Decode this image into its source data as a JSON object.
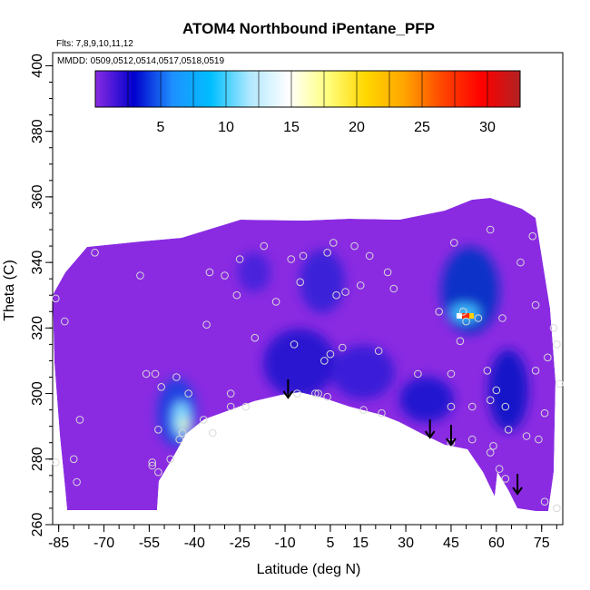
{
  "chart_data": {
    "type": "heatmap",
    "title": "ATOM4 Northbound iPentane_PFP",
    "subtitle_flights": "Flts: 7,8,9,10,11,12",
    "subtitle_dates": "MMDD: 0509,0512,0514,0517,0518,0519",
    "xlabel": "Latitude (deg N)",
    "ylabel": "Theta (C)",
    "xlim": [
      -87,
      82
    ],
    "ylim": [
      260,
      404
    ],
    "x_ticks": [
      -85,
      -70,
      -55,
      -40,
      -25,
      -10,
      5,
      15,
      30,
      45,
      60,
      75
    ],
    "y_ticks": [
      260,
      280,
      300,
      320,
      340,
      360,
      380,
      400
    ],
    "colorbar": {
      "range": [
        0,
        32.5
      ],
      "ticks": [
        5,
        10,
        15,
        20,
        25,
        30
      ],
      "colors": [
        "#8a2be2",
        "#0000cd",
        "#1e90ff",
        "#00bfff",
        "#b0e8ff",
        "#ffffff",
        "#ffff80",
        "#ffd700",
        "#ffa500",
        "#ff4500",
        "#ff0000",
        "#b22222"
      ]
    },
    "arrows": [
      -9,
      38,
      45,
      67
    ],
    "points": [
      [
        -86,
        329
      ],
      [
        -86,
        279
      ],
      [
        -83,
        322
      ],
      [
        -80,
        280
      ],
      [
        -79,
        273
      ],
      [
        -78,
        292
      ],
      [
        -73,
        343
      ],
      [
        -58,
        336
      ],
      [
        -56,
        306
      ],
      [
        -54,
        279
      ],
      [
        -54,
        278
      ],
      [
        -53,
        306
      ],
      [
        -52,
        289
      ],
      [
        -52,
        276
      ],
      [
        -51,
        302
      ],
      [
        -48,
        280
      ],
      [
        -46,
        305
      ],
      [
        -45,
        286
      ],
      [
        -44,
        288
      ],
      [
        -42,
        300
      ],
      [
        -37,
        292
      ],
      [
        -36,
        321
      ],
      [
        -35,
        337
      ],
      [
        -34,
        288
      ],
      [
        -30,
        336
      ],
      [
        -28,
        300
      ],
      [
        -28,
        296
      ],
      [
        -26,
        330
      ],
      [
        -25,
        341
      ],
      [
        -23,
        296
      ],
      [
        -20,
        317
      ],
      [
        -17,
        345
      ],
      [
        -13,
        328
      ],
      [
        -8,
        341
      ],
      [
        -7,
        315
      ],
      [
        -6,
        300
      ],
      [
        -5,
        334
      ],
      [
        -4,
        342
      ],
      [
        0,
        300
      ],
      [
        1,
        300
      ],
      [
        3,
        310
      ],
      [
        4,
        343
      ],
      [
        4,
        299
      ],
      [
        5,
        312
      ],
      [
        6,
        346
      ],
      [
        7,
        330
      ],
      [
        9,
        314
      ],
      [
        10,
        331
      ],
      [
        13,
        345
      ],
      [
        15,
        333
      ],
      [
        16,
        295
      ],
      [
        18,
        342
      ],
      [
        21,
        313
      ],
      [
        22,
        294
      ],
      [
        24,
        337
      ],
      [
        26,
        332
      ],
      [
        34,
        306
      ],
      [
        41,
        325
      ],
      [
        45,
        306
      ],
      [
        45,
        296
      ],
      [
        45,
        285
      ],
      [
        46,
        346
      ],
      [
        48,
        316
      ],
      [
        49,
        325
      ],
      [
        50,
        322
      ],
      [
        52,
        296
      ],
      [
        52,
        286
      ],
      [
        54,
        323
      ],
      [
        57,
        307
      ],
      [
        58,
        282
      ],
      [
        58,
        350
      ],
      [
        58,
        298
      ],
      [
        59,
        284
      ],
      [
        60,
        301
      ],
      [
        61,
        277
      ],
      [
        62,
        323
      ],
      [
        63,
        296
      ],
      [
        63,
        274
      ],
      [
        64,
        289
      ],
      [
        68,
        340
      ],
      [
        70,
        287
      ],
      [
        72,
        348
      ],
      [
        73,
        307
      ],
      [
        73,
        327
      ],
      [
        74,
        286
      ],
      [
        76,
        294
      ],
      [
        76,
        267
      ],
      [
        77,
        311
      ],
      [
        79,
        320
      ],
      [
        80,
        265
      ],
      [
        80,
        315
      ],
      [
        81,
        303
      ]
    ]
  }
}
